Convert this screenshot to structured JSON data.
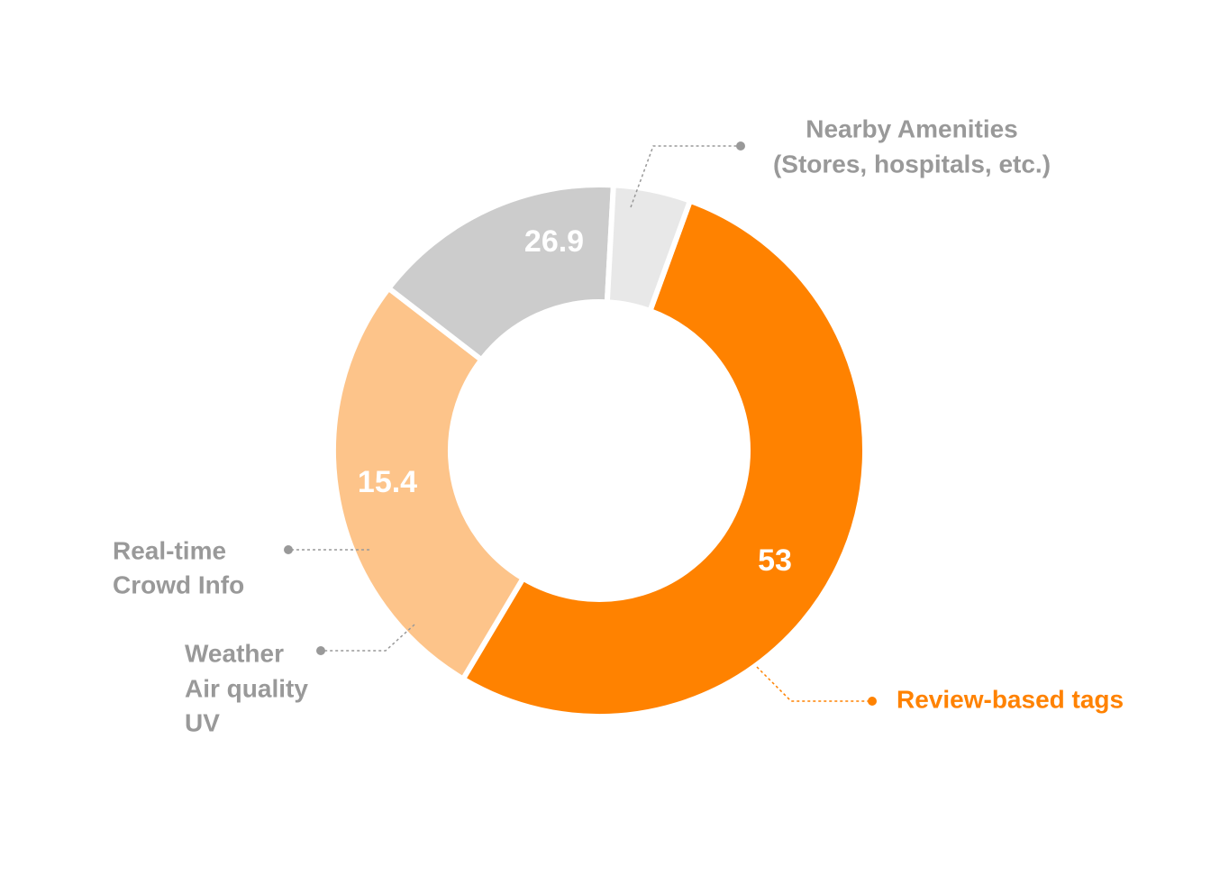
{
  "chart_data": {
    "type": "donut",
    "categories": [
      [
        "Review-based tags"
      ],
      [
        "Nearby Amenities",
        "(Stores, hospitals, etc.)"
      ],
      [
        "Real-time",
        "Crowd Info"
      ],
      [
        "Weather",
        "Air quality",
        "UV"
      ]
    ],
    "values": [
      53,
      26.9,
      15.4,
      4.7
    ],
    "colors": [
      "#ff8200",
      "#fdc48a",
      "#cccccc",
      "#e8e8e8"
    ],
    "label_colors": [
      "#ff8200",
      "#999999",
      "#999999",
      "#999999"
    ]
  }
}
